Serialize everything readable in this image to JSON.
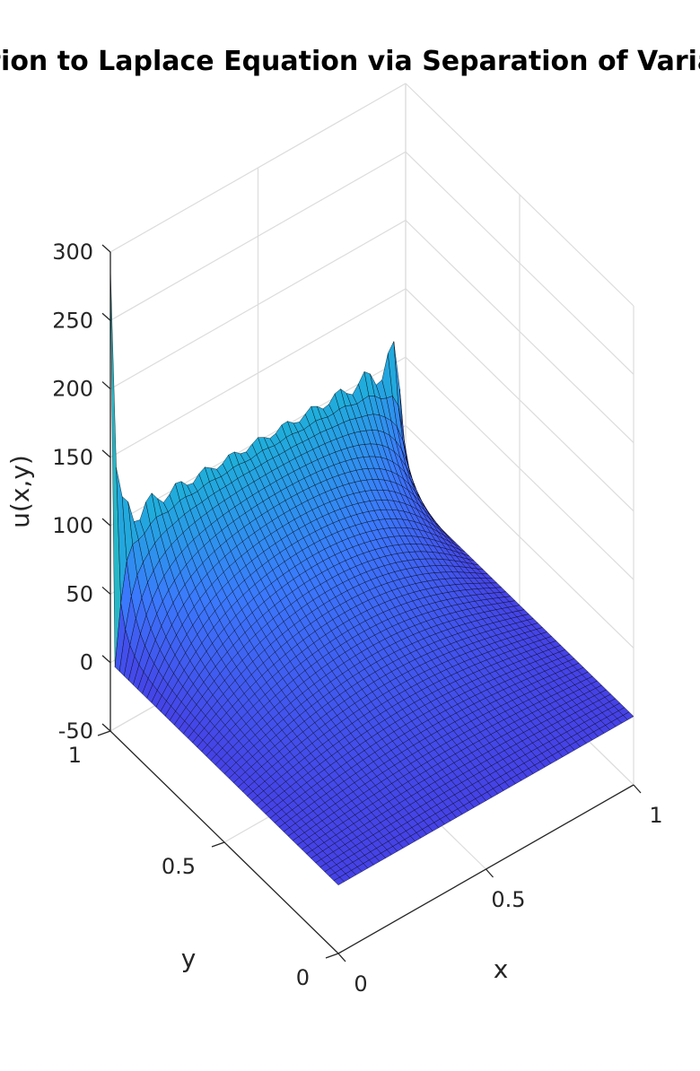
{
  "figure": {
    "title": "Solution to Laplace Equation via Separation of Variables"
  },
  "chart_data": {
    "type": "surface",
    "title": "Solution to Laplace Equation via Separation of Variables",
    "xlabel": "x",
    "ylabel": "y",
    "zlabel": "u(x,y)",
    "xlim": [
      0,
      1
    ],
    "ylim": [
      0,
      1
    ],
    "zlim": [
      -50,
      300
    ],
    "xticks": [
      "0",
      "0.5",
      "1"
    ],
    "yticks": [
      "0",
      "0.5",
      "1"
    ],
    "zticks": [
      "-50",
      "0",
      "50",
      "100",
      "150",
      "200",
      "250",
      "300"
    ],
    "grid": true,
    "colormap": "parula",
    "colormap_stops": [
      "#3e26a8",
      "#4542e6",
      "#3b79fd",
      "#1faeda",
      "#35c5a7",
      "#9ec940",
      "#f3d32c",
      "#f9fb15"
    ],
    "surface": {
      "description_values": "u(x,0)=0, u(0,y)=0, u(1,y)=0, u(x,1)=100 boundary; truncated Fourier sine series",
      "peak_value": 290,
      "ridge_value_at_y1": 100,
      "grid_resolution": 50
    }
  }
}
